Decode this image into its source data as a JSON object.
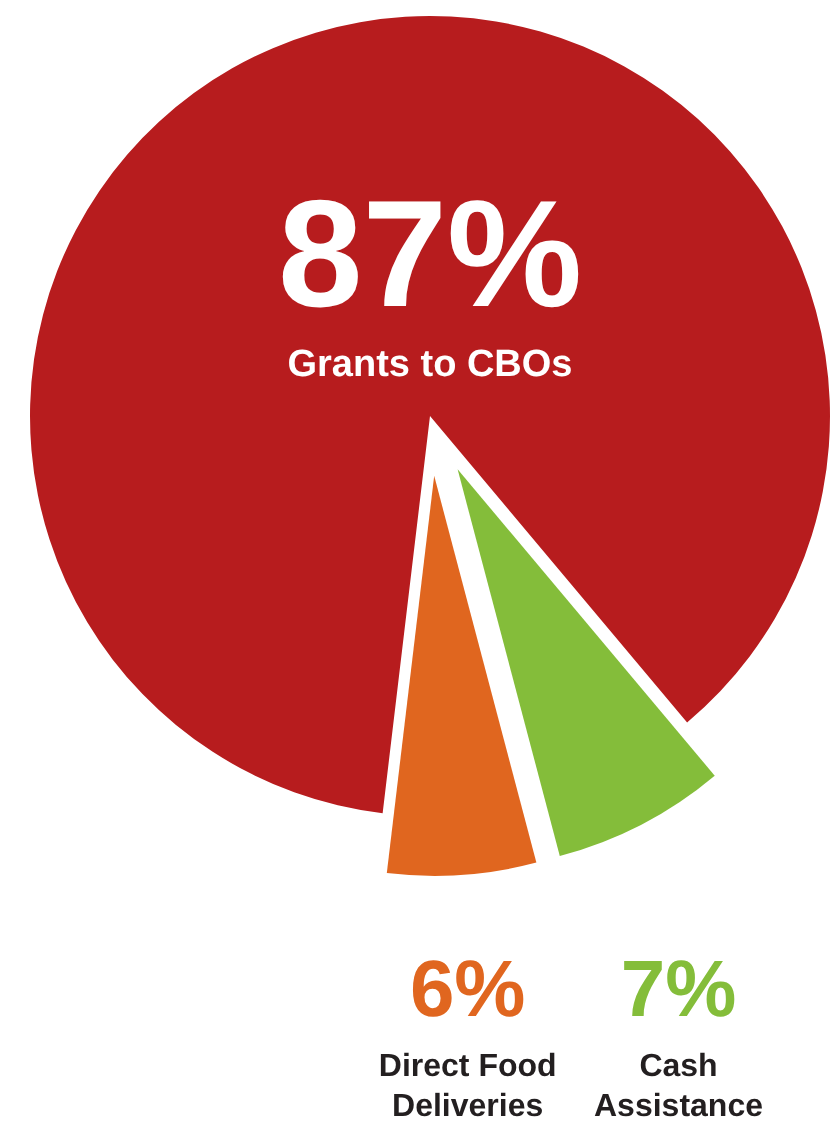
{
  "chart_data": {
    "type": "pie",
    "categories": [
      "Grants to CBOs",
      "Direct Food Deliveries",
      "Cash Assistance"
    ],
    "values": [
      87,
      6,
      7
    ],
    "colors": [
      "#b71c1e",
      "#e0661f",
      "#84bd3a"
    ],
    "value_labels": [
      "87%",
      "6%",
      "7%"
    ]
  }
}
